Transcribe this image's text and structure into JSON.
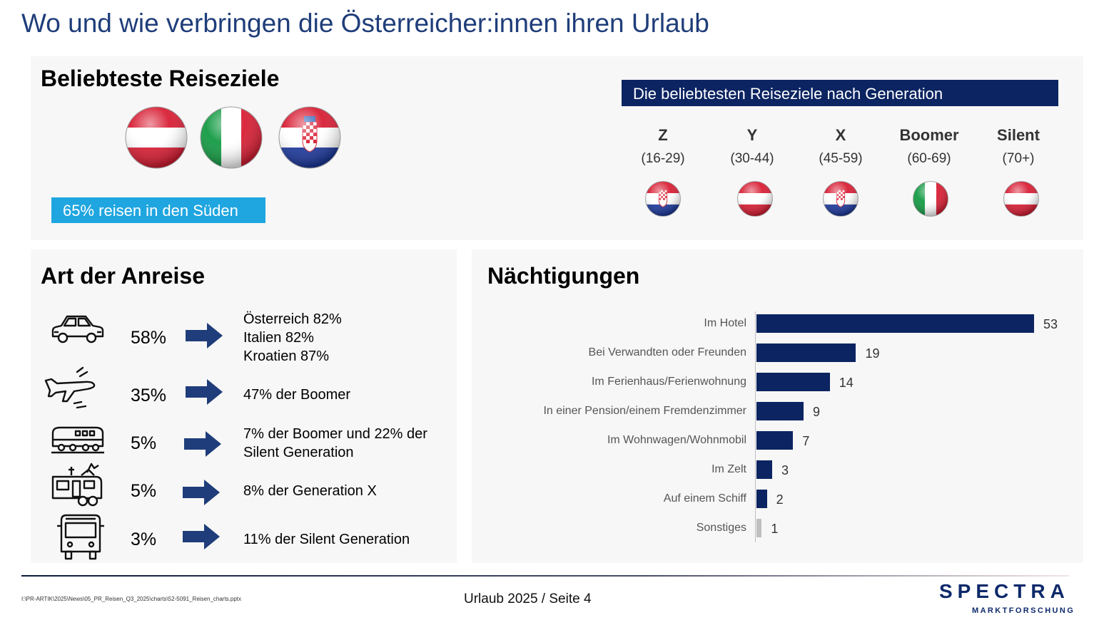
{
  "title": "Wo und wie verbringen die Österreicher:innen ihren Urlaub",
  "destinations": {
    "heading": "Beliebteste Reiseziele",
    "top_flags": [
      "austria-flag-icon",
      "italy-flag-icon",
      "croatia-flag-icon"
    ],
    "south_badge": "65% reisen in den Süden"
  },
  "generations": {
    "banner": "Die beliebtesten Reiseziele nach Generation",
    "items": [
      {
        "name": "Z",
        "age": "(16-29)",
        "flag": "croatia-flag-icon"
      },
      {
        "name": "Y",
        "age": "(30-44)",
        "flag": "austria-flag-icon"
      },
      {
        "name": "X",
        "age": "(45-59)",
        "flag": "croatia-flag-icon"
      },
      {
        "name": "Boomer",
        "age": "(60-69)",
        "flag": "italy-flag-icon"
      },
      {
        "name": "Silent",
        "age": "(70+)",
        "flag": "austria-flag-icon"
      }
    ]
  },
  "travel_mode": {
    "heading": "Art der Anreise",
    "items": [
      {
        "icon": "car-icon",
        "percent": "58%",
        "details": [
          "Österreich 82%",
          "Italien 82%",
          "Kroatien 87%"
        ]
      },
      {
        "icon": "airplane-icon",
        "percent": "35%",
        "details": [
          "47% der Boomer"
        ]
      },
      {
        "icon": "train-icon",
        "percent": "5%",
        "details": [
          "7% der Boomer und 22% der",
          "Silent Generation"
        ]
      },
      {
        "icon": "camper-van-icon",
        "percent": "5%",
        "details": [
          "8% der Generation X"
        ]
      },
      {
        "icon": "bus-icon",
        "percent": "3%",
        "details": [
          "11% der Silent Generation"
        ]
      }
    ]
  },
  "overnight": {
    "heading": "Nächtigungen"
  },
  "chart_data": {
    "type": "bar",
    "orientation": "horizontal",
    "title": "Nächtigungen",
    "categories": [
      "Im Hotel",
      "Bei Verwandten oder Freunden",
      "Im Ferienhaus/Ferienwohnung",
      "In einer Pension/einem Fremdenzimmer",
      "Im Wohnwagen/Wohnmobil",
      "Im Zelt",
      "Auf einem Schiff",
      "Sonstiges"
    ],
    "values": [
      53,
      19,
      14,
      9,
      7,
      3,
      2,
      1
    ],
    "value_labels": [
      "53",
      "19",
      "14",
      "9",
      "7",
      "3",
      "2",
      "1"
    ],
    "xlim": [
      0,
      53
    ],
    "colors": [
      "#0c2461",
      "#0c2461",
      "#0c2461",
      "#0c2461",
      "#0c2461",
      "#0c2461",
      "#0c2461",
      "#bfbfbf"
    ],
    "grid": false
  },
  "footer": {
    "path": "I:\\PR-ARTIK\\2025\\News\\05_PR_Reisen_Q3_2025\\charts\\52-5091_Reisen_charts.pptx",
    "page": "Urlaub 2025  /  Seite 4",
    "logo": "SPECTRA",
    "logo_sub": "MARKTFORSCHUNG"
  }
}
